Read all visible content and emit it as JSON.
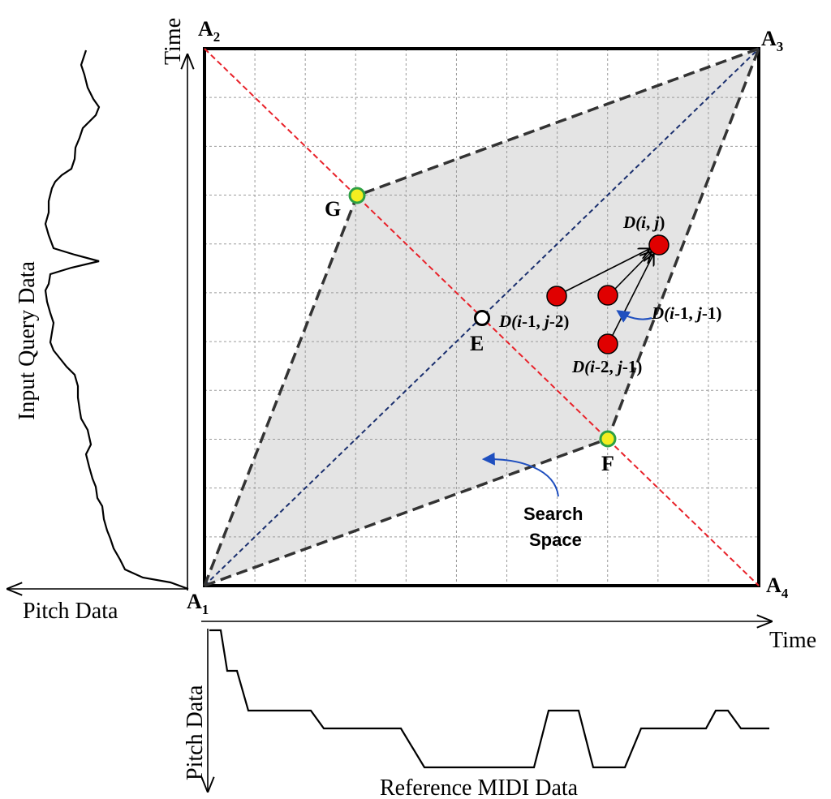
{
  "axes": {
    "vertical_time": "Time",
    "horizontal_time": "Time",
    "left_curve_label": "Input Query Data",
    "left_pitch": "Pitch Data",
    "bottom_pitch": "Pitch Data",
    "bottom_curve_label": "Reference MIDI Data"
  },
  "corners": {
    "a1": {
      "letter": "A",
      "sub": "1"
    },
    "a2": {
      "letter": "A",
      "sub": "2"
    },
    "a3": {
      "letter": "A",
      "sub": "3"
    },
    "a4": {
      "letter": "A",
      "sub": "4"
    }
  },
  "points": {
    "g": "G",
    "e": "E",
    "f": "F"
  },
  "cells": {
    "d_ij": {
      "pre": "D(",
      "i": "i",
      "mid": ", ",
      "j": "j",
      "post": ")"
    },
    "d_i1_j2": {
      "pre": "D(",
      "i": "i",
      "mid": "-1, ",
      "j": "j",
      "post": "-2)"
    },
    "d_i1_j1": {
      "pre": "D(",
      "i": "i",
      "mid": "-1, ",
      "j": "j",
      "post": "-1)"
    },
    "d_i2_j1": {
      "pre": "D(",
      "i": "i",
      "mid": "-2, ",
      "j": "j",
      "post": "-1)"
    }
  },
  "search_space": {
    "line1": "Search",
    "line2": "Space"
  },
  "colors": {
    "grid_line": "#9a9a9a",
    "frame": "#000000",
    "region_fill": "#e4e4e4",
    "anti_diagonal": "#e8222a",
    "main_diagonal": "#1a2f6e",
    "region_border": "#333333",
    "cell_dot": "#e00000",
    "yellow_dot": "#f4ee20",
    "yellow_dot_ring": "#2ea043",
    "arrow_blue": "#1f4fbf"
  },
  "grid": {
    "columns": 11,
    "rows": 11
  }
}
